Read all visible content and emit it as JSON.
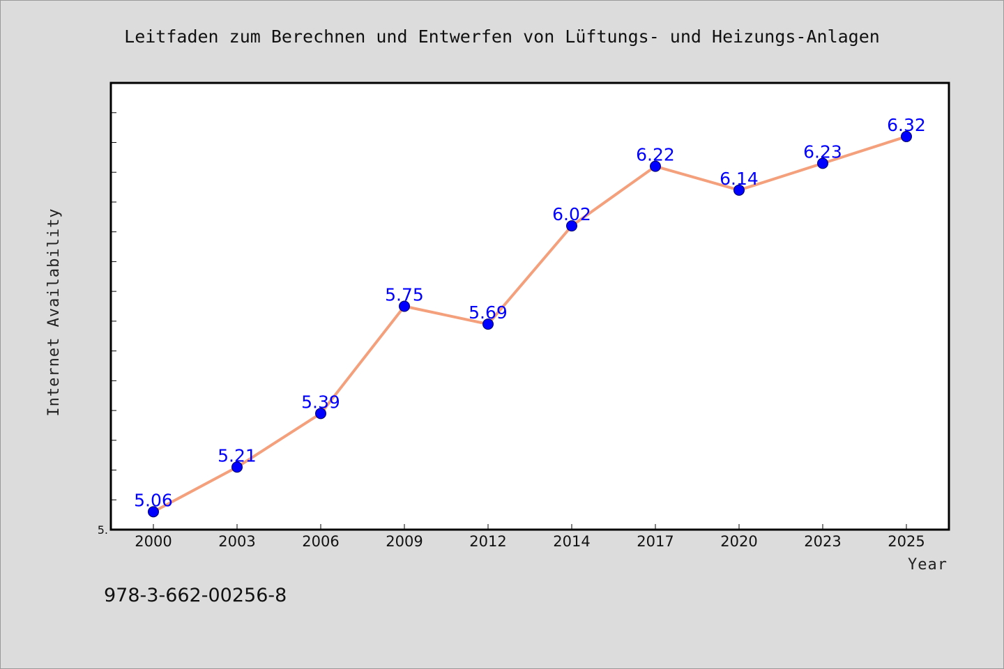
{
  "page": {
    "footer_text": "978-3-662-00256-8"
  },
  "chart_data": {
    "type": "line",
    "title": "Leitfaden zum Berechnen und Entwerfen von Lüftungs- und Heizungs-Anlagen",
    "xlabel": "Year",
    "ylabel": "Internet Availability",
    "categories": [
      "2000",
      "2003",
      "2006",
      "2009",
      "2012",
      "2014",
      "2017",
      "2020",
      "2023",
      "2025"
    ],
    "series": [
      {
        "values": [
          5.06,
          5.21,
          5.39,
          5.75,
          5.69,
          6.02,
          6.22,
          6.14,
          6.23,
          6.32
        ]
      }
    ],
    "ylim": [
      5.0,
      6.5
    ],
    "y_tick_step": 0.1,
    "y_visible_tick_labels": [
      "5."
    ],
    "grid": false,
    "legend": "none",
    "colors": {
      "line": "#f4a07c",
      "marker": "#0000ff",
      "label": "#0000ff",
      "plot_background": "#ffffff",
      "figure_background": "#dcdcdc"
    }
  }
}
